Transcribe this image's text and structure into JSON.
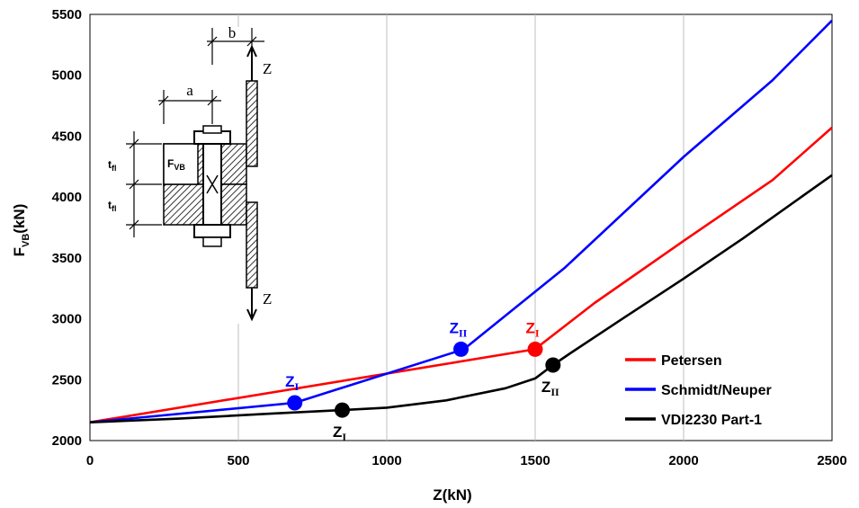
{
  "chart_data": {
    "type": "line",
    "xlabel": "Z(kN)",
    "ylabel_main": "F",
    "ylabel_sub": "VB",
    "ylabel_unit": "(kN)",
    "xlim": [
      0,
      2500
    ],
    "ylim": [
      2000,
      5500
    ],
    "xticks": [
      0,
      500,
      1000,
      1500,
      2000,
      2500
    ],
    "yticks": [
      2000,
      2500,
      3000,
      3500,
      4000,
      4500,
      5000,
      5500
    ],
    "grid": "vertical",
    "legend_position": "bottom-right",
    "series": [
      {
        "name": "Petersen",
        "color": "#ff0000",
        "x": [
          0,
          1500,
          1520,
          1700,
          2000,
          2300,
          2500
        ],
        "y": [
          2150,
          2750,
          2790,
          3130,
          3640,
          4140,
          4570
        ]
      },
      {
        "name": "Schmidt/Neuper",
        "color": "#0000ff",
        "x": [
          0,
          690,
          1260,
          1280,
          1600,
          2000,
          2300,
          2500
        ],
        "y": [
          2150,
          2310,
          2750,
          2790,
          3420,
          4330,
          4960,
          5450
        ]
      },
      {
        "name": "VDI2230 Part-1",
        "color": "#000000",
        "x": [
          0,
          300,
          600,
          850,
          1000,
          1200,
          1400,
          1500,
          1560,
          1620,
          1800,
          2000,
          2200,
          2500
        ],
        "y": [
          2150,
          2180,
          2220,
          2250,
          2270,
          2330,
          2430,
          2510,
          2620,
          2720,
          3010,
          3330,
          3660,
          4180
        ]
      }
    ],
    "key_points": [
      {
        "series": "Schmidt/Neuper",
        "x": 690,
        "y": 2310,
        "label": "Z",
        "sub": "I",
        "color": "#0000ff",
        "label_pos": "above"
      },
      {
        "series": "Schmidt/Neuper",
        "x": 1250,
        "y": 2750,
        "label": "Z",
        "sub": "II",
        "color": "#0000ff",
        "label_pos": "above"
      },
      {
        "series": "Petersen",
        "x": 1500,
        "y": 2750,
        "label": "Z",
        "sub": "I",
        "color": "#ff0000",
        "label_pos": "above"
      },
      {
        "series": "VDI2230 Part-1",
        "x": 850,
        "y": 2250,
        "label": "Z",
        "sub": "I",
        "color": "#000000",
        "label_pos": "below"
      },
      {
        "series": "VDI2230 Part-1",
        "x": 1560,
        "y": 2620,
        "label": "Z",
        "sub": "II",
        "color": "#000000",
        "label_pos": "below"
      }
    ]
  },
  "diagram": {
    "dim_a": "a",
    "dim_b": "b",
    "force_top": "Z",
    "force_bottom": "Z",
    "tfl_main": "t",
    "tfl_sub": "fl",
    "fvb_main": "F",
    "fvb_sub": "VB"
  }
}
